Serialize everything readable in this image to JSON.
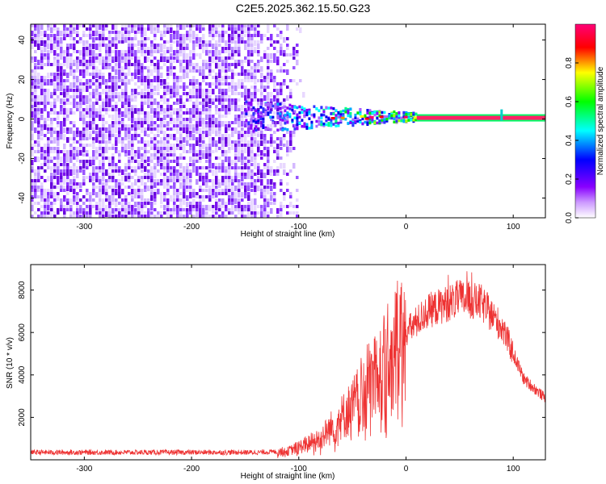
{
  "figure": {
    "title": "C2E5.2025.362.15.50.G23"
  },
  "chart_data": [
    {
      "type": "heatmap",
      "title": "C2E5.2025.362.15.50.G23",
      "xlabel": "Height of straight line (km)",
      "ylabel": "Frequency (Hz)",
      "xlim": [
        -350,
        130
      ],
      "ylim": [
        -50,
        48
      ],
      "xticks": [
        -300,
        -200,
        -100,
        0,
        100
      ],
      "yticks": [
        -40,
        -20,
        0,
        20,
        40
      ],
      "colorbar": {
        "label": "Normalized spectral amplitude",
        "range": [
          0,
          1
        ],
        "ticks": [
          "0.0",
          "0.2",
          "0.4",
          "0.6",
          "0.8"
        ],
        "colormap": [
          "#ffffff",
          "#8800ff",
          "#0000ff",
          "#00ffff",
          "#00ff00",
          "#ffff00",
          "#ff0000",
          "#ff0088"
        ]
      },
      "regions": [
        {
          "name": "noise",
          "x_range": [
            -350,
            -105
          ],
          "y_range": [
            -50,
            48
          ],
          "amplitude": [
            0.05,
            0.2
          ]
        },
        {
          "name": "transition",
          "x_range": [
            -150,
            10
          ],
          "y_center": 0,
          "amplitude": [
            0.2,
            0.6
          ]
        },
        {
          "name": "carrier",
          "x_range": [
            10,
            130
          ],
          "y": 0,
          "amplitude": 0.95
        }
      ]
    },
    {
      "type": "line",
      "xlabel": "Height of straight line (km)",
      "ylabel": "SNR (10 * v/v)",
      "xlim": [
        -350,
        130
      ],
      "ylim": [
        0,
        9200
      ],
      "xticks": [
        -300,
        -200,
        -100,
        0,
        100
      ],
      "yticks": [
        2000,
        4000,
        6000,
        8000
      ],
      "color": "#ee3333",
      "envelope": {
        "x": [
          -350,
          -140,
          -110,
          -80,
          -50,
          -30,
          0,
          20,
          50,
          70,
          90,
          110,
          130
        ],
        "y": [
          350,
          350,
          400,
          1000,
          2500,
          4000,
          6000,
          7000,
          7600,
          7400,
          6200,
          3800,
          2900
        ]
      }
    }
  ]
}
